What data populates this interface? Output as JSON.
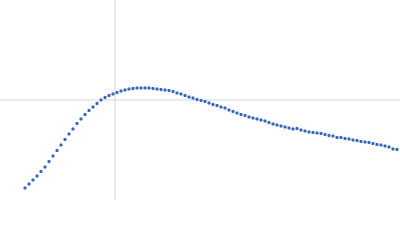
{
  "chart_data": {
    "type": "scatter",
    "x": [
      25,
      29,
      33,
      37,
      41,
      45,
      49,
      53,
      57,
      61,
      65,
      69,
      73,
      77,
      81,
      85,
      89,
      93,
      97,
      101,
      105,
      109,
      113,
      117,
      121,
      125,
      129,
      133,
      137,
      141,
      145,
      149,
      153,
      157,
      161,
      165,
      169,
      173,
      177,
      181,
      185,
      189,
      193,
      197,
      201,
      205,
      209,
      213,
      217,
      221,
      225,
      229,
      233,
      237,
      241,
      245,
      249,
      253,
      257,
      261,
      265,
      269,
      273,
      277,
      281,
      285,
      289,
      293,
      297,
      301,
      305,
      309,
      313,
      317,
      321,
      325,
      329,
      333,
      337,
      341,
      345,
      349,
      353,
      357,
      361,
      365,
      369,
      373,
      377,
      381,
      385,
      389,
      393,
      397
    ],
    "values": [
      12,
      16,
      20,
      24,
      28.5,
      33,
      38.5,
      44,
      49.5,
      55,
      60.5,
      66,
      71,
      76.5,
      81,
      85.5,
      89.5,
      93,
      96.5,
      100,
      102.5,
      104.5,
      106,
      107.5,
      109,
      110,
      111,
      111.5,
      112,
      112,
      112,
      112,
      111.5,
      111,
      110.5,
      110,
      109.5,
      108.5,
      107,
      106,
      104.5,
      103,
      102,
      100.5,
      99.5,
      98.5,
      97,
      95.5,
      94.5,
      93,
      92,
      90,
      88.5,
      87,
      85.5,
      84.5,
      83,
      82,
      81,
      80,
      79,
      77.5,
      76,
      75,
      74,
      73,
      72,
      71,
      71.5,
      70,
      69,
      68,
      67.5,
      67,
      66.5,
      65.5,
      64.5,
      64,
      62.5,
      62.5,
      61.5,
      61,
      60,
      59.5,
      58.5,
      58,
      57.5,
      56.5,
      55.5,
      55,
      54,
      53,
      51,
      50.5
    ],
    "color": "#3a66b3",
    "xlim": [
      0,
      400
    ],
    "ylim": [
      0,
      200
    ],
    "xticks": [
      115
    ],
    "yticks": [
      100
    ],
    "grid": true,
    "tick_labels": false
  }
}
